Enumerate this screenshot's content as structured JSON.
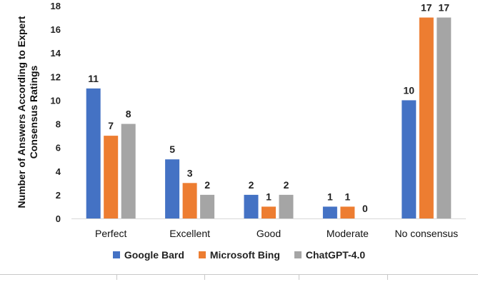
{
  "chart_data": {
    "type": "bar",
    "title": "",
    "xlabel": "",
    "ylabel": "Number of Answers According to Expert Consensus Ratings",
    "ylabel_lines": [
      "Number of Answers According to Expert",
      "Consensus Ratings"
    ],
    "ylim": [
      0,
      18
    ],
    "yticks": [
      0,
      2,
      4,
      6,
      8,
      10,
      12,
      14,
      16,
      18
    ],
    "grid": false,
    "legend_position": "bottom",
    "categories": [
      "Perfect",
      "Excellent",
      "Good",
      "Moderate",
      "No consensus"
    ],
    "series": [
      {
        "name": "Google Bard",
        "color": "#4472c4",
        "values": [
          11,
          5,
          2,
          1,
          10
        ]
      },
      {
        "name": "Microsoft Bing",
        "color": "#ed7d31",
        "values": [
          7,
          3,
          1,
          1,
          17
        ]
      },
      {
        "name": "ChatGPT-4.0",
        "color": "#a5a5a5",
        "values": [
          8,
          2,
          2,
          0,
          17
        ]
      }
    ]
  }
}
